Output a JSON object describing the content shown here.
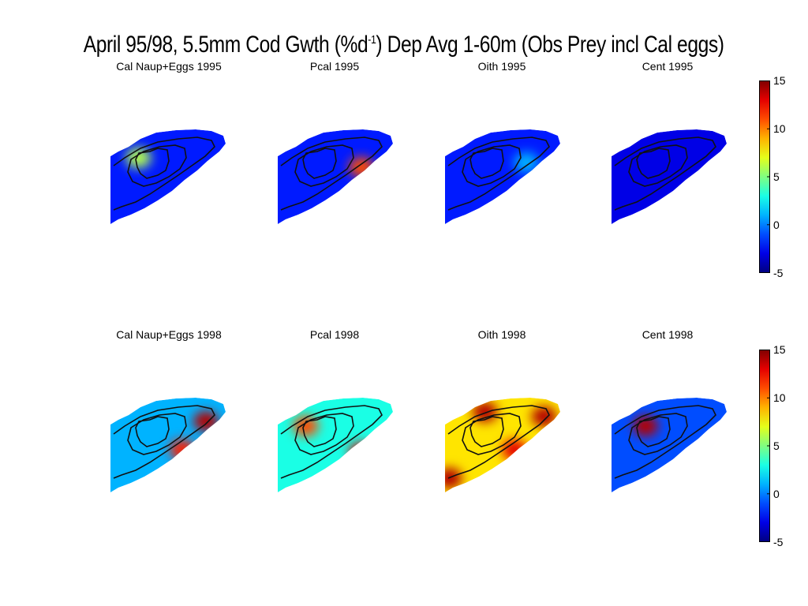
{
  "figure": {
    "title_main": "April 95/98, 5.5mm Cod Gwth (%d",
    "title_sup": "-1",
    "title_rest": ") Dep Avg 1-60m (Obs Prey incl Cal eggs)"
  },
  "chart_data": {
    "type": "heatmap",
    "colormap": "jet",
    "colorbar": {
      "range": [
        -5,
        15
      ],
      "ticks": [
        15,
        10,
        5,
        0,
        -5
      ]
    },
    "panels": [
      {
        "title": "Cal Naup+Eggs 1995",
        "row": 0,
        "col": 0,
        "base_value": -2,
        "hotspots": [
          {
            "u": 0.25,
            "v": 0.3,
            "value": 6
          }
        ]
      },
      {
        "title": "Pcal 1995",
        "row": 0,
        "col": 1,
        "base_value": -2,
        "hotspots": [
          {
            "u": 0.72,
            "v": 0.4,
            "value": 11
          }
        ]
      },
      {
        "title": "Oith 1995",
        "row": 0,
        "col": 2,
        "base_value": -2,
        "hotspots": [
          {
            "u": 0.7,
            "v": 0.35,
            "value": 1
          }
        ]
      },
      {
        "title": "Cent 1995",
        "row": 0,
        "col": 3,
        "base_value": -3,
        "hotspots": []
      },
      {
        "title": "Cal Naup+Eggs 1998",
        "row": 1,
        "col": 0,
        "base_value": 1,
        "hotspots": [
          {
            "u": 0.82,
            "v": 0.25,
            "value": 14
          },
          {
            "u": 0.62,
            "v": 0.55,
            "value": 12
          }
        ]
      },
      {
        "title": "Pcal 1998",
        "row": 1,
        "col": 1,
        "base_value": 3,
        "hotspots": [
          {
            "u": 0.72,
            "v": 0.58,
            "value": 13
          },
          {
            "u": 0.25,
            "v": 0.3,
            "value": 11
          }
        ]
      },
      {
        "title": "Oith 1998",
        "row": 1,
        "col": 2,
        "base_value": 8,
        "hotspots": [
          {
            "u": 0.35,
            "v": 0.15,
            "value": 14
          },
          {
            "u": 0.85,
            "v": 0.2,
            "value": 14
          },
          {
            "u": 0.6,
            "v": 0.55,
            "value": 13
          },
          {
            "u": 0.05,
            "v": 0.85,
            "value": 14
          }
        ]
      },
      {
        "title": "Cent 1998",
        "row": 1,
        "col": 3,
        "base_value": -1,
        "hotspots": [
          {
            "u": 0.3,
            "v": 0.3,
            "value": 14
          }
        ]
      }
    ]
  }
}
